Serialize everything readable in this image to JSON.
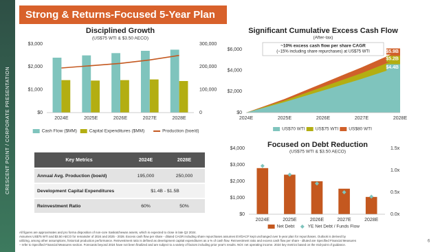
{
  "title": "Strong & Returns-Focused 5-Year Plan",
  "sidebar": "CRESCENT POINT  /  CORPORATE PRESENTATION",
  "page_number": "6",
  "table": {
    "header": [
      "Key Metrics",
      "2024E",
      "2028E"
    ],
    "rows": [
      [
        "Annual Avg. Production (boe/d)",
        "195,000",
        "250,000"
      ],
      [
        "Development Capital Expenditures",
        "$1.4B - $1.5B"
      ],
      [
        "Reinvestment Ratio",
        "60%",
        "50%"
      ]
    ]
  },
  "footnotes": [
    "All figures are approximates and pro forma disposition of non-core Saskatchewan assets, which is expected to close in late Q2 2024.",
    "Assumes US$75 WTI and $3.50 AECO for remainder of 2024 and 2025 - 2028. Excess cash flow per share - diluted CAGR including share repurchases assumes EV/DACF kept unchanged over 5-year plan for repurchases. Outlook is derived by",
    "utilizing, among other assumptions, historical production performance. Reinvestment ratio is defined as development capital expenditures as a % of cash flow. Reinvestment ratio and excess cash flow per share - diluted are Specified Financial Measures",
    "– refer to Specified Financial Measures section. Forecasts beyond 2024 have not been finalized and are subject to a variety of factors including prior year's results. NOI: net operating income. 2024 key metrics based on the mid-point of guidance."
  ],
  "chart_data": [
    {
      "type": "bar",
      "title": "Disciplined Growth",
      "subtitle": "(US$75 WTI & $3.50 AECO)",
      "categories": [
        "2024E",
        "2025E",
        "2026E",
        "2027E",
        "2028E"
      ],
      "series": [
        {
          "name": "Cash Flow ($MM)",
          "type": "bar",
          "color": "#7fc4bd",
          "values": [
            2400,
            2500,
            2600,
            2700,
            2750
          ]
        },
        {
          "name": "Capital Expenditures ($MM)",
          "type": "bar",
          "color": "#b3ae12",
          "values": [
            1420,
            1400,
            1420,
            1450,
            1380
          ]
        },
        {
          "name": "Production (boe/d)",
          "type": "line",
          "axis": "y2",
          "color": "#c4581f",
          "values": [
            195000,
            205000,
            215000,
            230000,
            250000
          ]
        }
      ],
      "ylim": [
        0,
        3000
      ],
      "yticks": [
        {
          "value": 0,
          "label": "$0"
        },
        {
          "value": 1000,
          "label": "$1,000"
        },
        {
          "value": 2000,
          "label": "$2,000"
        },
        {
          "value": 3000,
          "label": "$3,000"
        }
      ],
      "y2lim": [
        0,
        300000
      ],
      "y2ticks": [
        0,
        {
          "value": 100000,
          "label": "100,000"
        },
        {
          "value": 200000,
          "label": "200,000"
        },
        {
          "value": 300000,
          "label": "300,000"
        }
      ],
      "grid": false,
      "legend": "bottom"
    },
    {
      "type": "area",
      "title": "Significant Cumulative Excess Cash Flow",
      "subtitle": "(After-tax)",
      "annotations": [
        "~10% excess cash flow per share CAGR",
        "(~15% including share repurchases) at US$75 WTI"
      ],
      "categories": [
        "2024E",
        "2025E",
        "2026E",
        "2027E",
        "2028E"
      ],
      "series": [
        {
          "name": "US$70 WTI",
          "color": "#7fc4bd",
          "values": [
            0,
            1000,
            2100,
            3200,
            4400
          ],
          "value_labels": [
            null,
            null,
            null,
            null,
            "$4.4B"
          ]
        },
        {
          "name": "US$75 WTI",
          "color": "#b3ae12",
          "values": [
            0,
            1150,
            2450,
            3750,
            5200
          ],
          "value_labels": [
            null,
            null,
            null,
            null,
            "$5.2B"
          ]
        },
        {
          "name": "US$80 WTI",
          "color": "#d0602a",
          "values": [
            0,
            1300,
            2800,
            4300,
            5900
          ],
          "value_labels": [
            null,
            null,
            null,
            null,
            "$5.9B"
          ]
        }
      ],
      "ylim": [
        0,
        6000
      ],
      "yticks": [
        {
          "value": 0,
          "label": "$0"
        },
        {
          "value": 2000,
          "label": "$2,000"
        },
        {
          "value": 4000,
          "label": "$4,000"
        },
        {
          "value": 6000,
          "label": "$6,000"
        }
      ],
      "grid": false,
      "legend": "bottom"
    },
    {
      "type": "bar",
      "title": "Focused on Debt Reduction",
      "subtitle": "(US$75 WTI & $3.50 AECO)",
      "categories": [
        "2024E",
        "2025E",
        "2026E",
        "2027E",
        "2028E"
      ],
      "series": [
        {
          "name": "Net Debt",
          "type": "bar",
          "color": "#c4581f",
          "values": [
            2800,
            2400,
            2000,
            1550,
            1050
          ]
        },
        {
          "name": "YE Net Debt / Funds Flow",
          "type": "scatter",
          "axis": "y2",
          "color": "#7fc4bd",
          "values": [
            1.1,
            0.9,
            0.7,
            0.5,
            0.4
          ]
        }
      ],
      "ylim": [
        0,
        4000
      ],
      "yticks": [
        {
          "value": 0,
          "label": "$0"
        },
        {
          "value": 1000,
          "label": "$1,000"
        },
        {
          "value": 2000,
          "label": "$2,000"
        },
        {
          "value": 3000,
          "label": "$3,000"
        },
        {
          "value": 4000,
          "label": "$4,000"
        }
      ],
      "y2lim": [
        0,
        1.5
      ],
      "y2ticks": [
        {
          "value": 0,
          "label": "0.0x"
        },
        {
          "value": 0.5,
          "label": "0.5x"
        },
        {
          "value": 1,
          "label": "1.0x"
        },
        {
          "value": 1.5,
          "label": "1.5x"
        }
      ],
      "grid": false,
      "legend": "bottom"
    }
  ]
}
